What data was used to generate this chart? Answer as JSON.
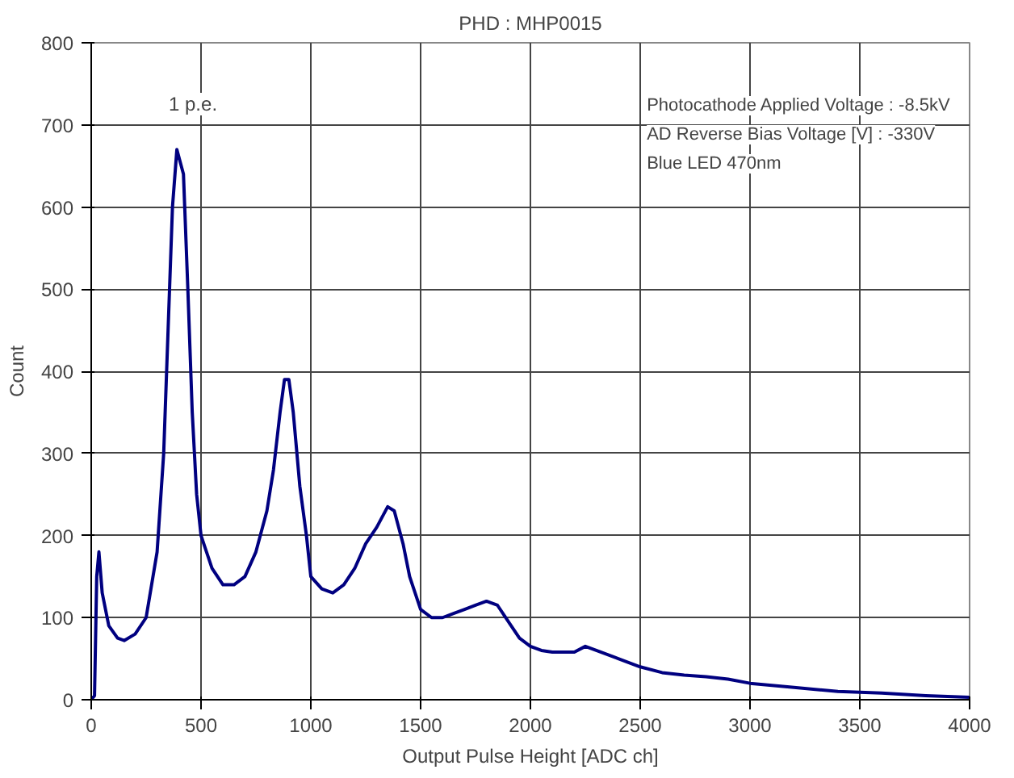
{
  "chart_data": {
    "type": "line",
    "title": "PHD : MHP0015",
    "xlabel": "Output Pulse Height [ADC ch]",
    "ylabel": "Count",
    "x": [
      0,
      15,
      25,
      35,
      50,
      80,
      120,
      150,
      200,
      250,
      300,
      330,
      350,
      370,
      390,
      400,
      420,
      440,
      460,
      480,
      500,
      550,
      600,
      650,
      700,
      750,
      800,
      830,
      860,
      880,
      900,
      920,
      950,
      980,
      1000,
      1050,
      1100,
      1150,
      1200,
      1250,
      1300,
      1350,
      1380,
      1420,
      1450,
      1500,
      1550,
      1600,
      1650,
      1700,
      1750,
      1800,
      1850,
      1900,
      1950,
      2000,
      2050,
      2100,
      2200,
      2250,
      2300,
      2400,
      2500,
      2600,
      2700,
      2800,
      2900,
      3000,
      3200,
      3400,
      3600,
      3800,
      4000
    ],
    "series": [
      {
        "color": "#000080",
        "values": [
          0,
          5,
          150,
          180,
          130,
          90,
          75,
          72,
          80,
          100,
          180,
          300,
          450,
          600,
          670,
          660,
          640,
          500,
          350,
          250,
          200,
          160,
          140,
          140,
          150,
          180,
          230,
          280,
          350,
          390,
          390,
          350,
          260,
          200,
          150,
          135,
          130,
          140,
          160,
          190,
          210,
          235,
          230,
          190,
          150,
          110,
          100,
          100,
          105,
          110,
          115,
          120,
          115,
          95,
          75,
          65,
          60,
          58,
          58,
          65,
          60,
          50,
          40,
          33,
          30,
          28,
          25,
          20,
          15,
          10,
          8,
          5,
          3
        ]
      }
    ],
    "xlim": [
      0,
      4000
    ],
    "ylim": [
      0,
      800
    ],
    "xticks": [
      0,
      500,
      1000,
      1500,
      2000,
      2500,
      3000,
      3500,
      4000
    ],
    "yticks": [
      0,
      100,
      200,
      300,
      400,
      500,
      600,
      700,
      800
    ],
    "grid": true,
    "marker": "none",
    "line_style": "solid",
    "annotations": [
      "1 p.e.",
      "Photocathode Applied Voltage : -8.5kV",
      "AD Reverse Bias Voltage [V] : -330V",
      "Blue LED 470nm"
    ]
  }
}
